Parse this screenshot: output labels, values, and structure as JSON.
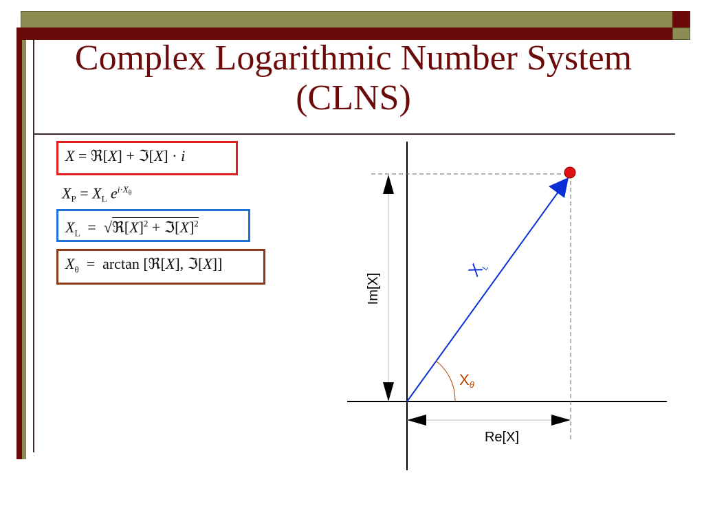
{
  "slide": {
    "title_line1": "Complex Logarithmic Number System",
    "title_line2": "(CLNS)"
  },
  "formulas": {
    "f1": "X = ℜ[X] + ℑ[X] · i",
    "f2": "XP = XL e^(i·Xθ)",
    "f3": "XL = √(ℜ[X]² + ℑ[X]²)",
    "f4": "Xθ = arctan [ℜ[X], ℑ[X]]"
  },
  "diagram": {
    "im_label": "Im[X]",
    "re_label": "Re[X]",
    "magnitude_label": "XL",
    "angle_label": "Xθ",
    "vector_color": "#0a2fd6",
    "angle_color": "#b34700",
    "point_color": "#e01010"
  },
  "colors": {
    "title": "#6b0a0a",
    "bar_olive": "#8b8b52",
    "bar_maroon": "#6b0a0a",
    "box_red": "#e02020",
    "box_blue": "#1f6fd6",
    "box_brown": "#8b3a1a"
  }
}
